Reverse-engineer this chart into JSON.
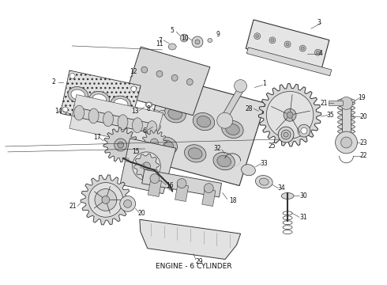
{
  "caption": "ENGINE - 6 CYLINDER",
  "bg": "#f5f5f0",
  "fg": "#333333",
  "lw": 0.6,
  "fig_w": 4.9,
  "fig_h": 3.6,
  "dpi": 100
}
